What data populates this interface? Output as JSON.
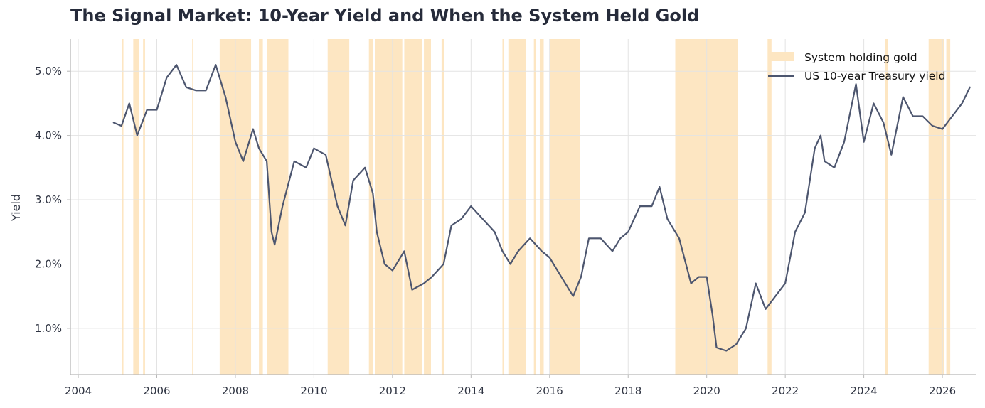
{
  "chart_data": {
    "type": "line",
    "title": "The Signal Market: 10-Year Yield and When the System Held Gold",
    "xlabel": "",
    "ylabel": "Yield",
    "x_ticks": [
      "2004",
      "2006",
      "2008",
      "2010",
      "2012",
      "2014",
      "2016",
      "2018",
      "2020",
      "2022",
      "2024",
      "2026"
    ],
    "y_ticks": [
      "1.0%",
      "2.0%",
      "3.0%",
      "4.0%",
      "5.0%"
    ],
    "xlim": [
      2003.8,
      2026.85
    ],
    "ylim": [
      0.28,
      5.5
    ],
    "grid": true,
    "legend_position": "top-right",
    "colors": {
      "line": "#4d566f",
      "shade": "#fde6c2",
      "grid": "#e3e3e3",
      "axis": "#b8b8b8"
    },
    "shaded_series": {
      "name": "System holding gold",
      "intervals": [
        [
          2005.12,
          2005.15
        ],
        [
          2005.4,
          2005.55
        ],
        [
          2005.65,
          2005.7
        ],
        [
          2006.9,
          2006.93
        ],
        [
          2007.6,
          2008.4
        ],
        [
          2008.6,
          2008.7
        ],
        [
          2008.8,
          2009.35
        ],
        [
          2010.35,
          2010.9
        ],
        [
          2011.4,
          2011.5
        ],
        [
          2011.55,
          2012.25
        ],
        [
          2012.3,
          2012.75
        ],
        [
          2012.8,
          2012.98
        ],
        [
          2013.25,
          2013.32
        ],
        [
          2014.8,
          2014.83
        ],
        [
          2014.95,
          2015.4
        ],
        [
          2015.6,
          2015.65
        ],
        [
          2015.75,
          2015.85
        ],
        [
          2016.0,
          2016.78
        ],
        [
          2019.2,
          2020.8
        ],
        [
          2021.55,
          2021.65
        ],
        [
          2024.55,
          2024.62
        ],
        [
          2025.65,
          2026.05
        ],
        [
          2026.1,
          2026.2
        ]
      ]
    },
    "series": [
      {
        "name": "US 10-year Treasury yield",
        "x": [
          2004.9,
          2005.1,
          2005.3,
          2005.5,
          2005.75,
          2006.0,
          2006.25,
          2006.5,
          2006.75,
          2007.0,
          2007.25,
          2007.5,
          2007.75,
          2008.0,
          2008.2,
          2008.45,
          2008.6,
          2008.8,
          2008.92,
          2009.0,
          2009.2,
          2009.5,
          2009.8,
          2010.0,
          2010.3,
          2010.6,
          2010.8,
          2011.0,
          2011.3,
          2011.5,
          2011.6,
          2011.8,
          2012.0,
          2012.3,
          2012.5,
          2012.8,
          2013.0,
          2013.3,
          2013.5,
          2013.75,
          2014.0,
          2014.3,
          2014.6,
          2014.8,
          2015.0,
          2015.2,
          2015.5,
          2015.8,
          2016.0,
          2016.3,
          2016.6,
          2016.8,
          2017.0,
          2017.3,
          2017.6,
          2017.8,
          2018.0,
          2018.3,
          2018.6,
          2018.8,
          2019.0,
          2019.3,
          2019.6,
          2019.8,
          2020.0,
          2020.15,
          2020.25,
          2020.5,
          2020.75,
          2021.0,
          2021.25,
          2021.5,
          2021.75,
          2022.0,
          2022.25,
          2022.5,
          2022.75,
          2022.9,
          2023.0,
          2023.25,
          2023.5,
          2023.8,
          2024.0,
          2024.25,
          2024.5,
          2024.7,
          2024.9,
          2025.0,
          2025.25,
          2025.5,
          2025.75,
          2026.0,
          2026.25,
          2026.5,
          2026.7
        ],
        "y": [
          4.2,
          4.15,
          4.5,
          4.0,
          4.4,
          4.4,
          4.9,
          5.1,
          4.75,
          4.7,
          4.7,
          5.1,
          4.6,
          3.9,
          3.6,
          4.1,
          3.8,
          3.6,
          2.5,
          2.3,
          2.9,
          3.6,
          3.5,
          3.8,
          3.7,
          2.9,
          2.6,
          3.3,
          3.5,
          3.1,
          2.5,
          2.0,
          1.9,
          2.2,
          1.6,
          1.7,
          1.8,
          2.0,
          2.6,
          2.7,
          2.9,
          2.7,
          2.5,
          2.2,
          2.0,
          2.2,
          2.4,
          2.2,
          2.1,
          1.8,
          1.5,
          1.8,
          2.4,
          2.4,
          2.2,
          2.4,
          2.5,
          2.9,
          2.9,
          3.2,
          2.7,
          2.4,
          1.7,
          1.8,
          1.8,
          1.2,
          0.7,
          0.65,
          0.75,
          1.0,
          1.7,
          1.3,
          1.5,
          1.7,
          2.5,
          2.8,
          3.8,
          4.0,
          3.6,
          3.5,
          3.9,
          4.8,
          3.9,
          4.5,
          4.2,
          3.7,
          4.3,
          4.6,
          4.3,
          4.3,
          4.15,
          4.1,
          4.3,
          4.5,
          4.75
        ]
      }
    ]
  }
}
